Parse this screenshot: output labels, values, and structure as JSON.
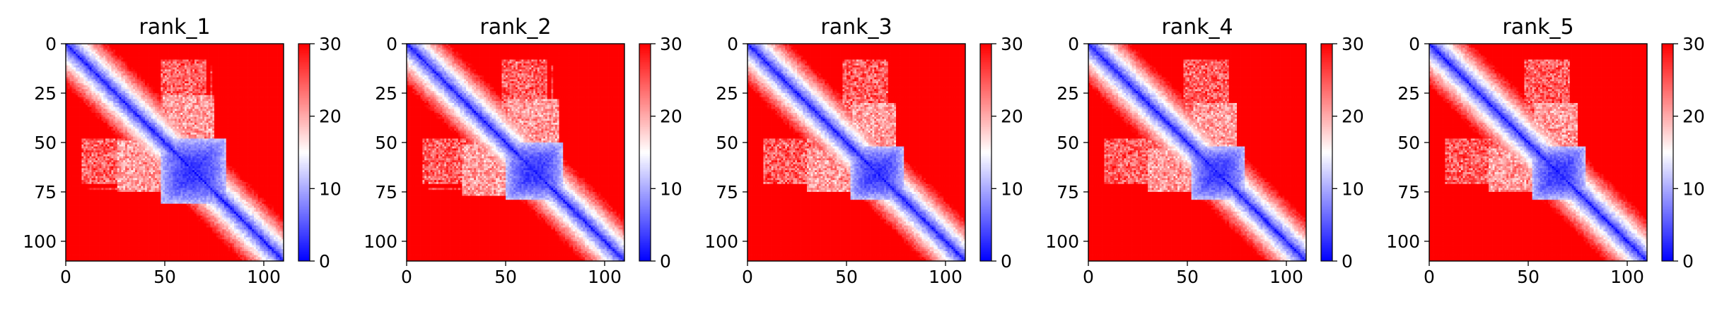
{
  "chart_data": [
    {
      "type": "heatmap",
      "title": "rank_1",
      "n": 110,
      "xlim": [
        0,
        110
      ],
      "ylim": [
        110,
        0
      ],
      "xticks": [
        0,
        50,
        100
      ],
      "yticks": [
        0,
        25,
        50,
        75,
        100
      ],
      "colorbar": {
        "min": 0,
        "max": 30,
        "ticks": [
          0,
          10,
          20,
          30
        ]
      },
      "domain_block": {
        "start": 48,
        "end": 80,
        "bridge": 70
      },
      "stripes": [
        55,
        58,
        61,
        64,
        67,
        70,
        73
      ]
    },
    {
      "type": "heatmap",
      "title": "rank_2",
      "n": 110,
      "xlim": [
        0,
        110
      ],
      "ylim": [
        110,
        0
      ],
      "xticks": [
        0,
        50,
        100
      ],
      "yticks": [
        0,
        25,
        50,
        75,
        100
      ],
      "colorbar": {
        "min": 0,
        "max": 30,
        "ticks": [
          0,
          10,
          20,
          30
        ]
      },
      "domain_block": {
        "start": 50,
        "end": 78,
        "bridge": 72
      },
      "stripes": [
        55,
        58,
        61,
        64,
        67,
        70,
        73
      ]
    },
    {
      "type": "heatmap",
      "title": "rank_3",
      "n": 110,
      "xlim": [
        0,
        110
      ],
      "ylim": [
        110,
        0
      ],
      "xticks": [
        0,
        50,
        100
      ],
      "yticks": [
        0,
        25,
        50,
        75,
        100
      ],
      "colorbar": {
        "min": 0,
        "max": 30,
        "ticks": [
          0,
          10,
          20,
          30
        ]
      },
      "domain_block": {
        "start": 52,
        "end": 78,
        "bridge": 70
      },
      "stripes": []
    },
    {
      "type": "heatmap",
      "title": "rank_4",
      "n": 110,
      "xlim": [
        0,
        110
      ],
      "ylim": [
        110,
        0
      ],
      "xticks": [
        0,
        50,
        100
      ],
      "yticks": [
        0,
        25,
        50,
        75,
        100
      ],
      "colorbar": {
        "min": 0,
        "max": 30,
        "ticks": [
          0,
          10,
          20,
          30
        ]
      },
      "domain_block": {
        "start": 52,
        "end": 78,
        "bridge": 70
      },
      "stripes": []
    },
    {
      "type": "heatmap",
      "title": "rank_5",
      "n": 110,
      "xlim": [
        0,
        110
      ],
      "ylim": [
        110,
        0
      ],
      "xticks": [
        0,
        50,
        100
      ],
      "yticks": [
        0,
        25,
        50,
        75,
        100
      ],
      "colorbar": {
        "min": 0,
        "max": 30,
        "ticks": [
          0,
          10,
          20,
          30
        ]
      },
      "domain_block": {
        "start": 52,
        "end": 78,
        "bridge": 70
      },
      "stripes": []
    }
  ],
  "colors": {
    "low": "#0000ff",
    "mid": "#ffffff",
    "high": "#ff0000"
  }
}
